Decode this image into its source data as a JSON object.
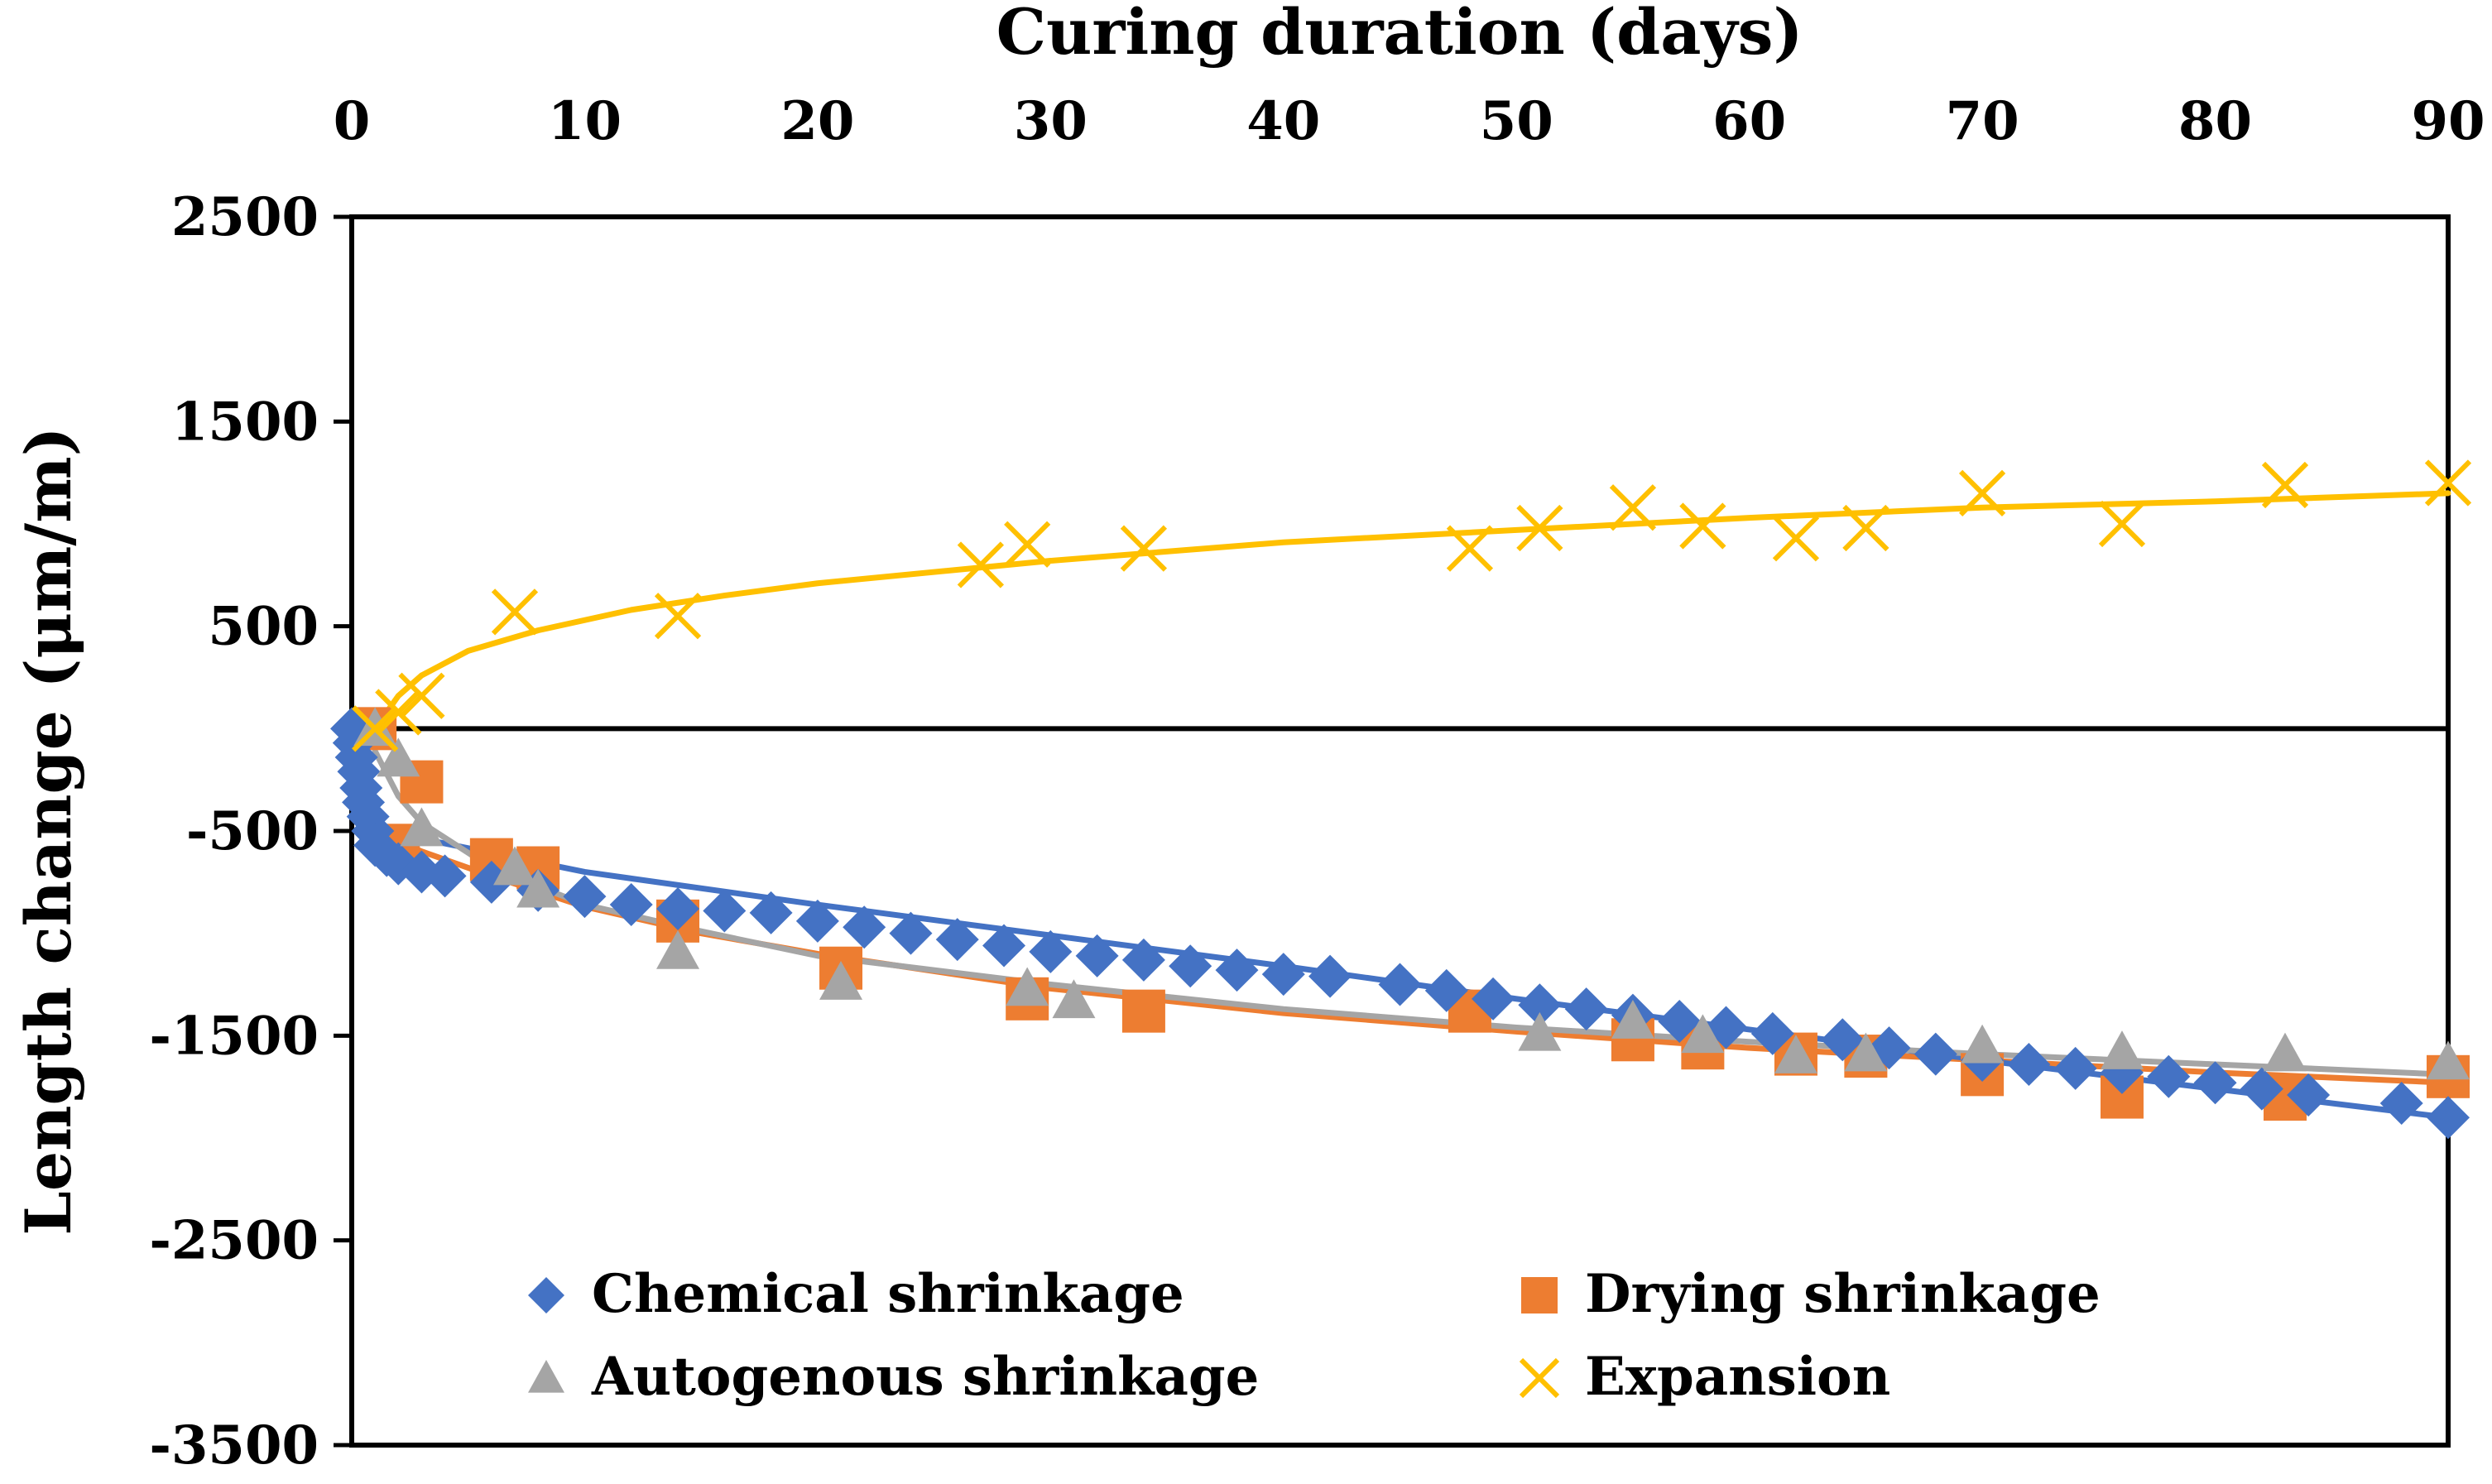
{
  "chart_data": {
    "type": "scatter",
    "title": "",
    "xlabel": "Curing duration (days)",
    "ylabel": "Length change (μm/m)",
    "xlim": [
      0,
      90
    ],
    "ylim": [
      -3500,
      2500
    ],
    "x_ticks": [
      "0",
      "10",
      "20",
      "30",
      "40",
      "50",
      "60",
      "70",
      "80",
      "90"
    ],
    "y_ticks": [
      "2500",
      "1500",
      "500",
      "-500",
      "-1500",
      "-2500",
      "-3500"
    ],
    "x_axis_position": "top",
    "legend_position": "bottom-inside",
    "series": [
      {
        "name": "Chemical shrinkage",
        "marker": "diamond",
        "color": "#4472C4",
        "points": [
          [
            0,
            0
          ],
          [
            0.1,
            -70
          ],
          [
            0.2,
            -140
          ],
          [
            0.3,
            -210
          ],
          [
            0.4,
            -290
          ],
          [
            0.5,
            -360
          ],
          [
            0.7,
            -430
          ],
          [
            0.9,
            -500
          ],
          [
            1,
            -570
          ],
          [
            1.5,
            -620
          ],
          [
            2,
            -660
          ],
          [
            3,
            -700
          ],
          [
            4,
            -720
          ],
          [
            6,
            -750
          ],
          [
            8,
            -790
          ],
          [
            10,
            -820
          ],
          [
            12,
            -860
          ],
          [
            14,
            -880
          ],
          [
            16,
            -890
          ],
          [
            18,
            -900
          ],
          [
            20,
            -940
          ],
          [
            22,
            -970
          ],
          [
            24,
            -1000
          ],
          [
            26,
            -1030
          ],
          [
            28,
            -1060
          ],
          [
            30,
            -1090
          ],
          [
            32,
            -1110
          ],
          [
            34,
            -1130
          ],
          [
            36,
            -1160
          ],
          [
            38,
            -1180
          ],
          [
            40,
            -1200
          ],
          [
            42,
            -1210
          ],
          [
            45,
            -1250
          ],
          [
            47,
            -1280
          ],
          [
            49,
            -1320
          ],
          [
            51,
            -1350
          ],
          [
            53,
            -1370
          ],
          [
            55,
            -1400
          ],
          [
            57,
            -1430
          ],
          [
            59,
            -1460
          ],
          [
            61,
            -1490
          ],
          [
            64,
            -1520
          ],
          [
            66,
            -1560
          ],
          [
            68,
            -1590
          ],
          [
            70,
            -1620
          ],
          [
            72,
            -1640
          ],
          [
            74,
            -1660
          ],
          [
            76,
            -1680
          ],
          [
            78,
            -1700
          ],
          [
            80,
            -1730
          ],
          [
            82,
            -1760
          ],
          [
            84,
            -1790
          ],
          [
            88,
            -1830
          ],
          [
            90,
            -1900
          ]
        ],
        "trend": [
          [
            0.5,
            -480
          ],
          [
            10,
            -700
          ],
          [
            20,
            -860
          ],
          [
            30,
            -1010
          ],
          [
            40,
            -1160
          ],
          [
            50,
            -1320
          ],
          [
            60,
            -1470
          ],
          [
            70,
            -1620
          ],
          [
            80,
            -1760
          ],
          [
            90,
            -1900
          ]
        ]
      },
      {
        "name": "Drying shrinkage",
        "marker": "square",
        "color": "#ED7D31",
        "points": [
          [
            1,
            0
          ],
          [
            2,
            -570
          ],
          [
            3,
            -260
          ],
          [
            6,
            -640
          ],
          [
            8,
            -680
          ],
          [
            14,
            -940
          ],
          [
            21,
            -1170
          ],
          [
            29,
            -1320
          ],
          [
            34,
            -1380
          ],
          [
            48,
            -1380
          ],
          [
            55,
            -1520
          ],
          [
            58,
            -1560
          ],
          [
            62,
            -1590
          ],
          [
            65,
            -1600
          ],
          [
            70,
            -1690
          ],
          [
            76,
            -1800
          ],
          [
            83,
            -1810
          ],
          [
            90,
            -1700
          ]
        ],
        "trend": [
          [
            1,
            -500
          ],
          [
            3,
            -600
          ],
          [
            6,
            -720
          ],
          [
            10,
            -870
          ],
          [
            15,
            -1000
          ],
          [
            20,
            -1100
          ],
          [
            30,
            -1270
          ],
          [
            40,
            -1390
          ],
          [
            50,
            -1480
          ],
          [
            60,
            -1560
          ],
          [
            70,
            -1620
          ],
          [
            80,
            -1680
          ],
          [
            90,
            -1730
          ]
        ]
      },
      {
        "name": "Autogenous shrinkage",
        "marker": "triangle",
        "color": "#A5A5A5",
        "points": [
          [
            1,
            0
          ],
          [
            2,
            -150
          ],
          [
            3,
            -490
          ],
          [
            7,
            -680
          ],
          [
            8,
            -790
          ],
          [
            14,
            -1090
          ],
          [
            21,
            -1240
          ],
          [
            29,
            -1270
          ],
          [
            31,
            -1330
          ],
          [
            51,
            -1490
          ],
          [
            55,
            -1430
          ],
          [
            58,
            -1500
          ],
          [
            62,
            -1600
          ],
          [
            65,
            -1590
          ],
          [
            70,
            -1550
          ],
          [
            76,
            -1580
          ],
          [
            83,
            -1590
          ],
          [
            90,
            -1630
          ]
        ],
        "trend": [
          [
            1,
            -110
          ],
          [
            2,
            -330
          ],
          [
            3,
            -460
          ],
          [
            6,
            -680
          ],
          [
            10,
            -860
          ],
          [
            15,
            -990
          ],
          [
            20,
            -1110
          ],
          [
            30,
            -1250
          ],
          [
            40,
            -1370
          ],
          [
            50,
            -1460
          ],
          [
            60,
            -1530
          ],
          [
            70,
            -1590
          ],
          [
            80,
            -1640
          ],
          [
            90,
            -1690
          ]
        ]
      },
      {
        "name": "Expansion",
        "marker": "x",
        "color": "#FFC000",
        "points": [
          [
            1,
            0
          ],
          [
            2,
            80
          ],
          [
            3,
            160
          ],
          [
            7,
            570
          ],
          [
            14,
            550
          ],
          [
            27,
            800
          ],
          [
            29,
            900
          ],
          [
            34,
            880
          ],
          [
            48,
            880
          ],
          [
            51,
            980
          ],
          [
            55,
            1080
          ],
          [
            58,
            990
          ],
          [
            62,
            930
          ],
          [
            65,
            980
          ],
          [
            70,
            1150
          ],
          [
            76,
            1000
          ],
          [
            83,
            1190
          ],
          [
            90,
            1200
          ]
        ],
        "trend": [
          [
            1,
            0
          ],
          [
            2,
            160
          ],
          [
            3,
            260
          ],
          [
            5,
            380
          ],
          [
            8,
            480
          ],
          [
            12,
            580
          ],
          [
            16,
            650
          ],
          [
            20,
            710
          ],
          [
            30,
            820
          ],
          [
            40,
            910
          ],
          [
            50,
            970
          ],
          [
            60,
            1030
          ],
          [
            70,
            1080
          ],
          [
            80,
            1110
          ],
          [
            90,
            1150
          ]
        ]
      }
    ]
  }
}
